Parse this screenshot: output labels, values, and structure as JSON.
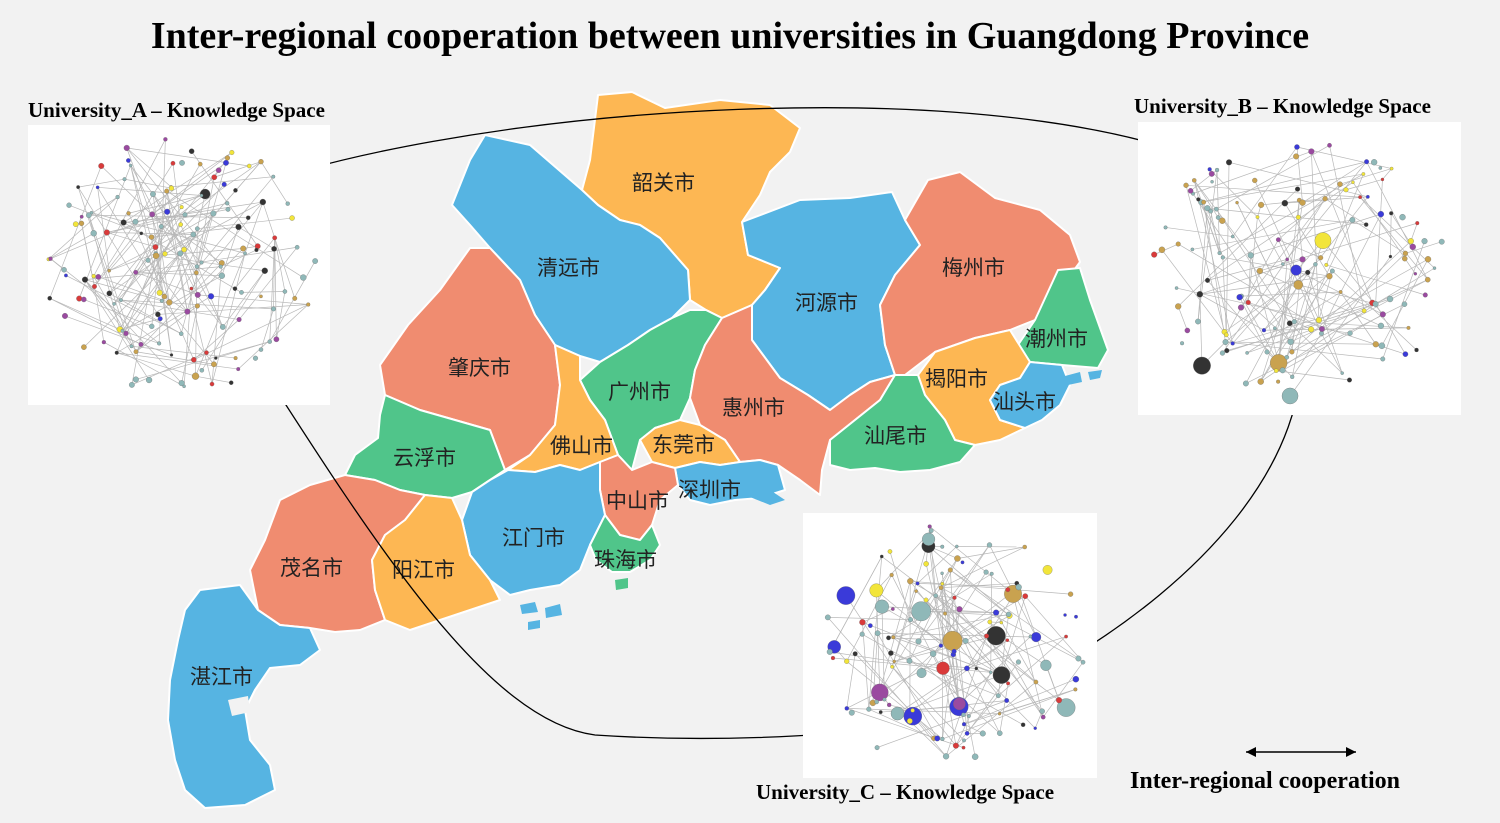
{
  "title": "Inter-regional cooperation between universities in Guangdong Province",
  "panels": {
    "a": {
      "label": "University_A – Knowledge Space"
    },
    "b": {
      "label": "University_B – Knowledge Space"
    },
    "c": {
      "label": "University_C – Knowledge Space"
    }
  },
  "legend": {
    "label": "Inter-regional  cooperation"
  },
  "colors": {
    "blue": "#56b4e2",
    "orange": "#fdb753",
    "salmon": "#f08c70",
    "green": "#50c58a"
  },
  "cities": [
    {
      "id": "shaoguan",
      "name": "韶关市",
      "color": "orange"
    },
    {
      "id": "qingyuan",
      "name": "清远市",
      "color": "blue"
    },
    {
      "id": "heyuan",
      "name": "河源市",
      "color": "blue"
    },
    {
      "id": "meizhou",
      "name": "梅州市",
      "color": "salmon"
    },
    {
      "id": "chaozhou",
      "name": "潮州市",
      "color": "green"
    },
    {
      "id": "zhaoqing",
      "name": "肇庆市",
      "color": "salmon"
    },
    {
      "id": "guangzhou",
      "name": "广州市",
      "color": "green"
    },
    {
      "id": "huizhou",
      "name": "惠州市",
      "color": "salmon"
    },
    {
      "id": "jieyang",
      "name": "揭阳市",
      "color": "orange"
    },
    {
      "id": "shantou",
      "name": "汕头市",
      "color": "blue"
    },
    {
      "id": "shanwei",
      "name": "汕尾市",
      "color": "green"
    },
    {
      "id": "yunfu",
      "name": "云浮市",
      "color": "green"
    },
    {
      "id": "foshan",
      "name": "佛山市",
      "color": "orange"
    },
    {
      "id": "dongguan",
      "name": "东莞市",
      "color": "orange"
    },
    {
      "id": "shenzhen",
      "name": "深圳市",
      "color": "blue"
    },
    {
      "id": "zhongshan",
      "name": "中山市",
      "color": "salmon"
    },
    {
      "id": "jiangmen",
      "name": "江门市",
      "color": "blue"
    },
    {
      "id": "zhuhai",
      "name": "珠海市",
      "color": "green"
    },
    {
      "id": "maoming",
      "name": "茂名市",
      "color": "salmon"
    },
    {
      "id": "yangjiang",
      "name": "阳江市",
      "color": "orange"
    },
    {
      "id": "zhanjiang",
      "name": "湛江市",
      "color": "blue"
    }
  ]
}
